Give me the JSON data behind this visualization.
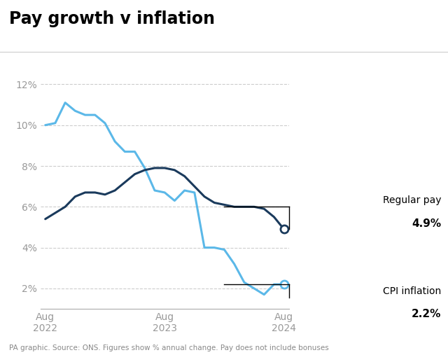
{
  "title": "Pay growth v inflation",
  "footnote": "PA graphic. Source: ONS. Figures show % annual change. Pay does not include bonuses",
  "background_color": "#ffffff",
  "title_color": "#000000",
  "regular_pay_color": "#1a3a5c",
  "cpi_color": "#5bb8e8",
  "ylim": [
    1.0,
    13.0
  ],
  "yticks": [
    2,
    4,
    6,
    8,
    10,
    12
  ],
  "regular_pay": {
    "x": [
      0,
      1,
      2,
      3,
      4,
      5,
      6,
      7,
      8,
      9,
      10,
      11,
      12,
      13,
      14,
      15,
      16,
      17,
      18,
      19,
      20,
      21,
      22,
      23,
      24
    ],
    "y": [
      5.4,
      5.7,
      6.0,
      6.5,
      6.7,
      6.7,
      6.6,
      6.8,
      7.2,
      7.6,
      7.8,
      7.9,
      7.9,
      7.8,
      7.5,
      7.0,
      6.5,
      6.2,
      6.1,
      6.0,
      6.0,
      6.0,
      5.9,
      5.5,
      4.9
    ]
  },
  "cpi_inflation": {
    "x": [
      0,
      1,
      2,
      3,
      4,
      5,
      6,
      7,
      8,
      9,
      10,
      11,
      12,
      13,
      14,
      15,
      16,
      17,
      18,
      19,
      20,
      21,
      22,
      23,
      24
    ],
    "y": [
      10.0,
      10.1,
      11.1,
      10.7,
      10.5,
      10.5,
      10.1,
      9.2,
      8.7,
      8.7,
      7.9,
      6.8,
      6.7,
      6.3,
      6.8,
      6.7,
      4.0,
      4.0,
      3.9,
      3.2,
      2.3,
      2.0,
      1.7,
      2.2,
      2.2
    ]
  },
  "x_tick_positions": [
    0,
    12,
    24
  ],
  "x_tick_labels": [
    "Aug\n2022",
    "Aug\n2023",
    "Aug\n2024"
  ],
  "ann_reg_horiz_y": 6.0,
  "ann_reg_vert_y": 4.9,
  "ann_cpi_horiz_y": 2.2,
  "ann_cpi_vert_y": 1.55
}
